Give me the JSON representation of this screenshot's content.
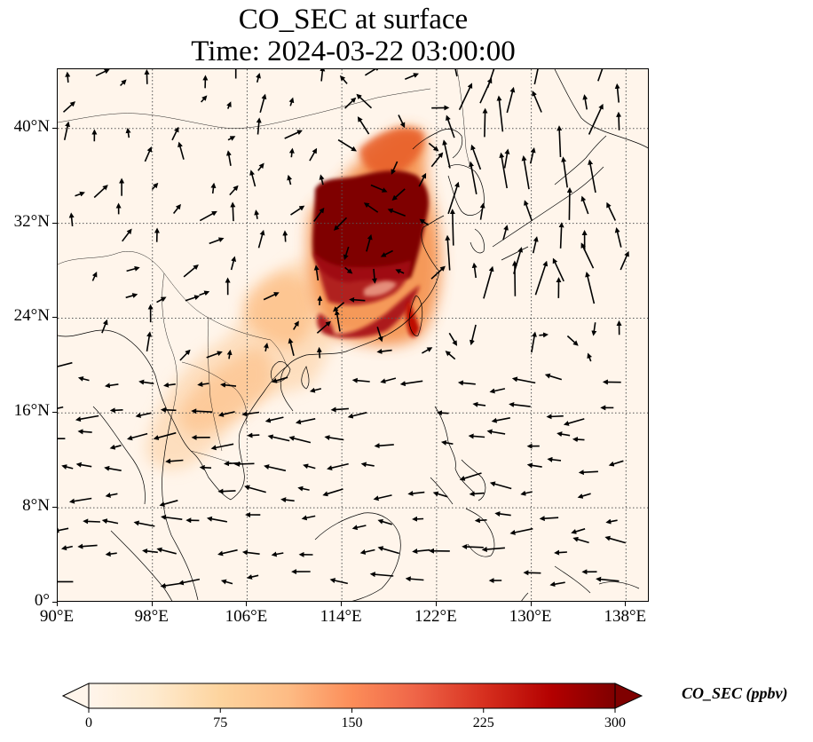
{
  "title": {
    "line1": "CO_SEC at surface",
    "line2": "Time: 2024-03-22 03:00:00"
  },
  "map": {
    "lon_range": [
      90,
      140
    ],
    "lat_range": [
      0,
      45
    ],
    "lon_ticks": [
      {
        "value": 90,
        "label": "90°E"
      },
      {
        "value": 98,
        "label": "98°E"
      },
      {
        "value": 106,
        "label": "106°E"
      },
      {
        "value": 114,
        "label": "114°E"
      },
      {
        "value": 122,
        "label": "122°E"
      },
      {
        "value": 130,
        "label": "130°E"
      },
      {
        "value": 138,
        "label": "138°E"
      }
    ],
    "lat_ticks": [
      {
        "value": 0,
        "label": "0°"
      },
      {
        "value": 8,
        "label": "8°N"
      },
      {
        "value": 16,
        "label": "16°N"
      },
      {
        "value": 24,
        "label": "24°N"
      },
      {
        "value": 32,
        "label": "32°N"
      },
      {
        "value": 40,
        "label": "40°N"
      }
    ],
    "gridlines": true,
    "field_colors": [
      "#fff5eb",
      "#fdd9b4",
      "#fda762",
      "#f16913",
      "#bd0b00",
      "#7f0000"
    ]
  },
  "colorbar": {
    "label": "CO_SEC (ppbv)",
    "min": 0,
    "max": 300,
    "ticks": [
      {
        "value": 0,
        "label": "0"
      },
      {
        "value": 75,
        "label": "75"
      },
      {
        "value": 150,
        "label": "150"
      },
      {
        "value": 225,
        "label": "225"
      },
      {
        "value": 300,
        "label": "300"
      }
    ],
    "extend": "both",
    "colormap": "OrRd"
  }
}
